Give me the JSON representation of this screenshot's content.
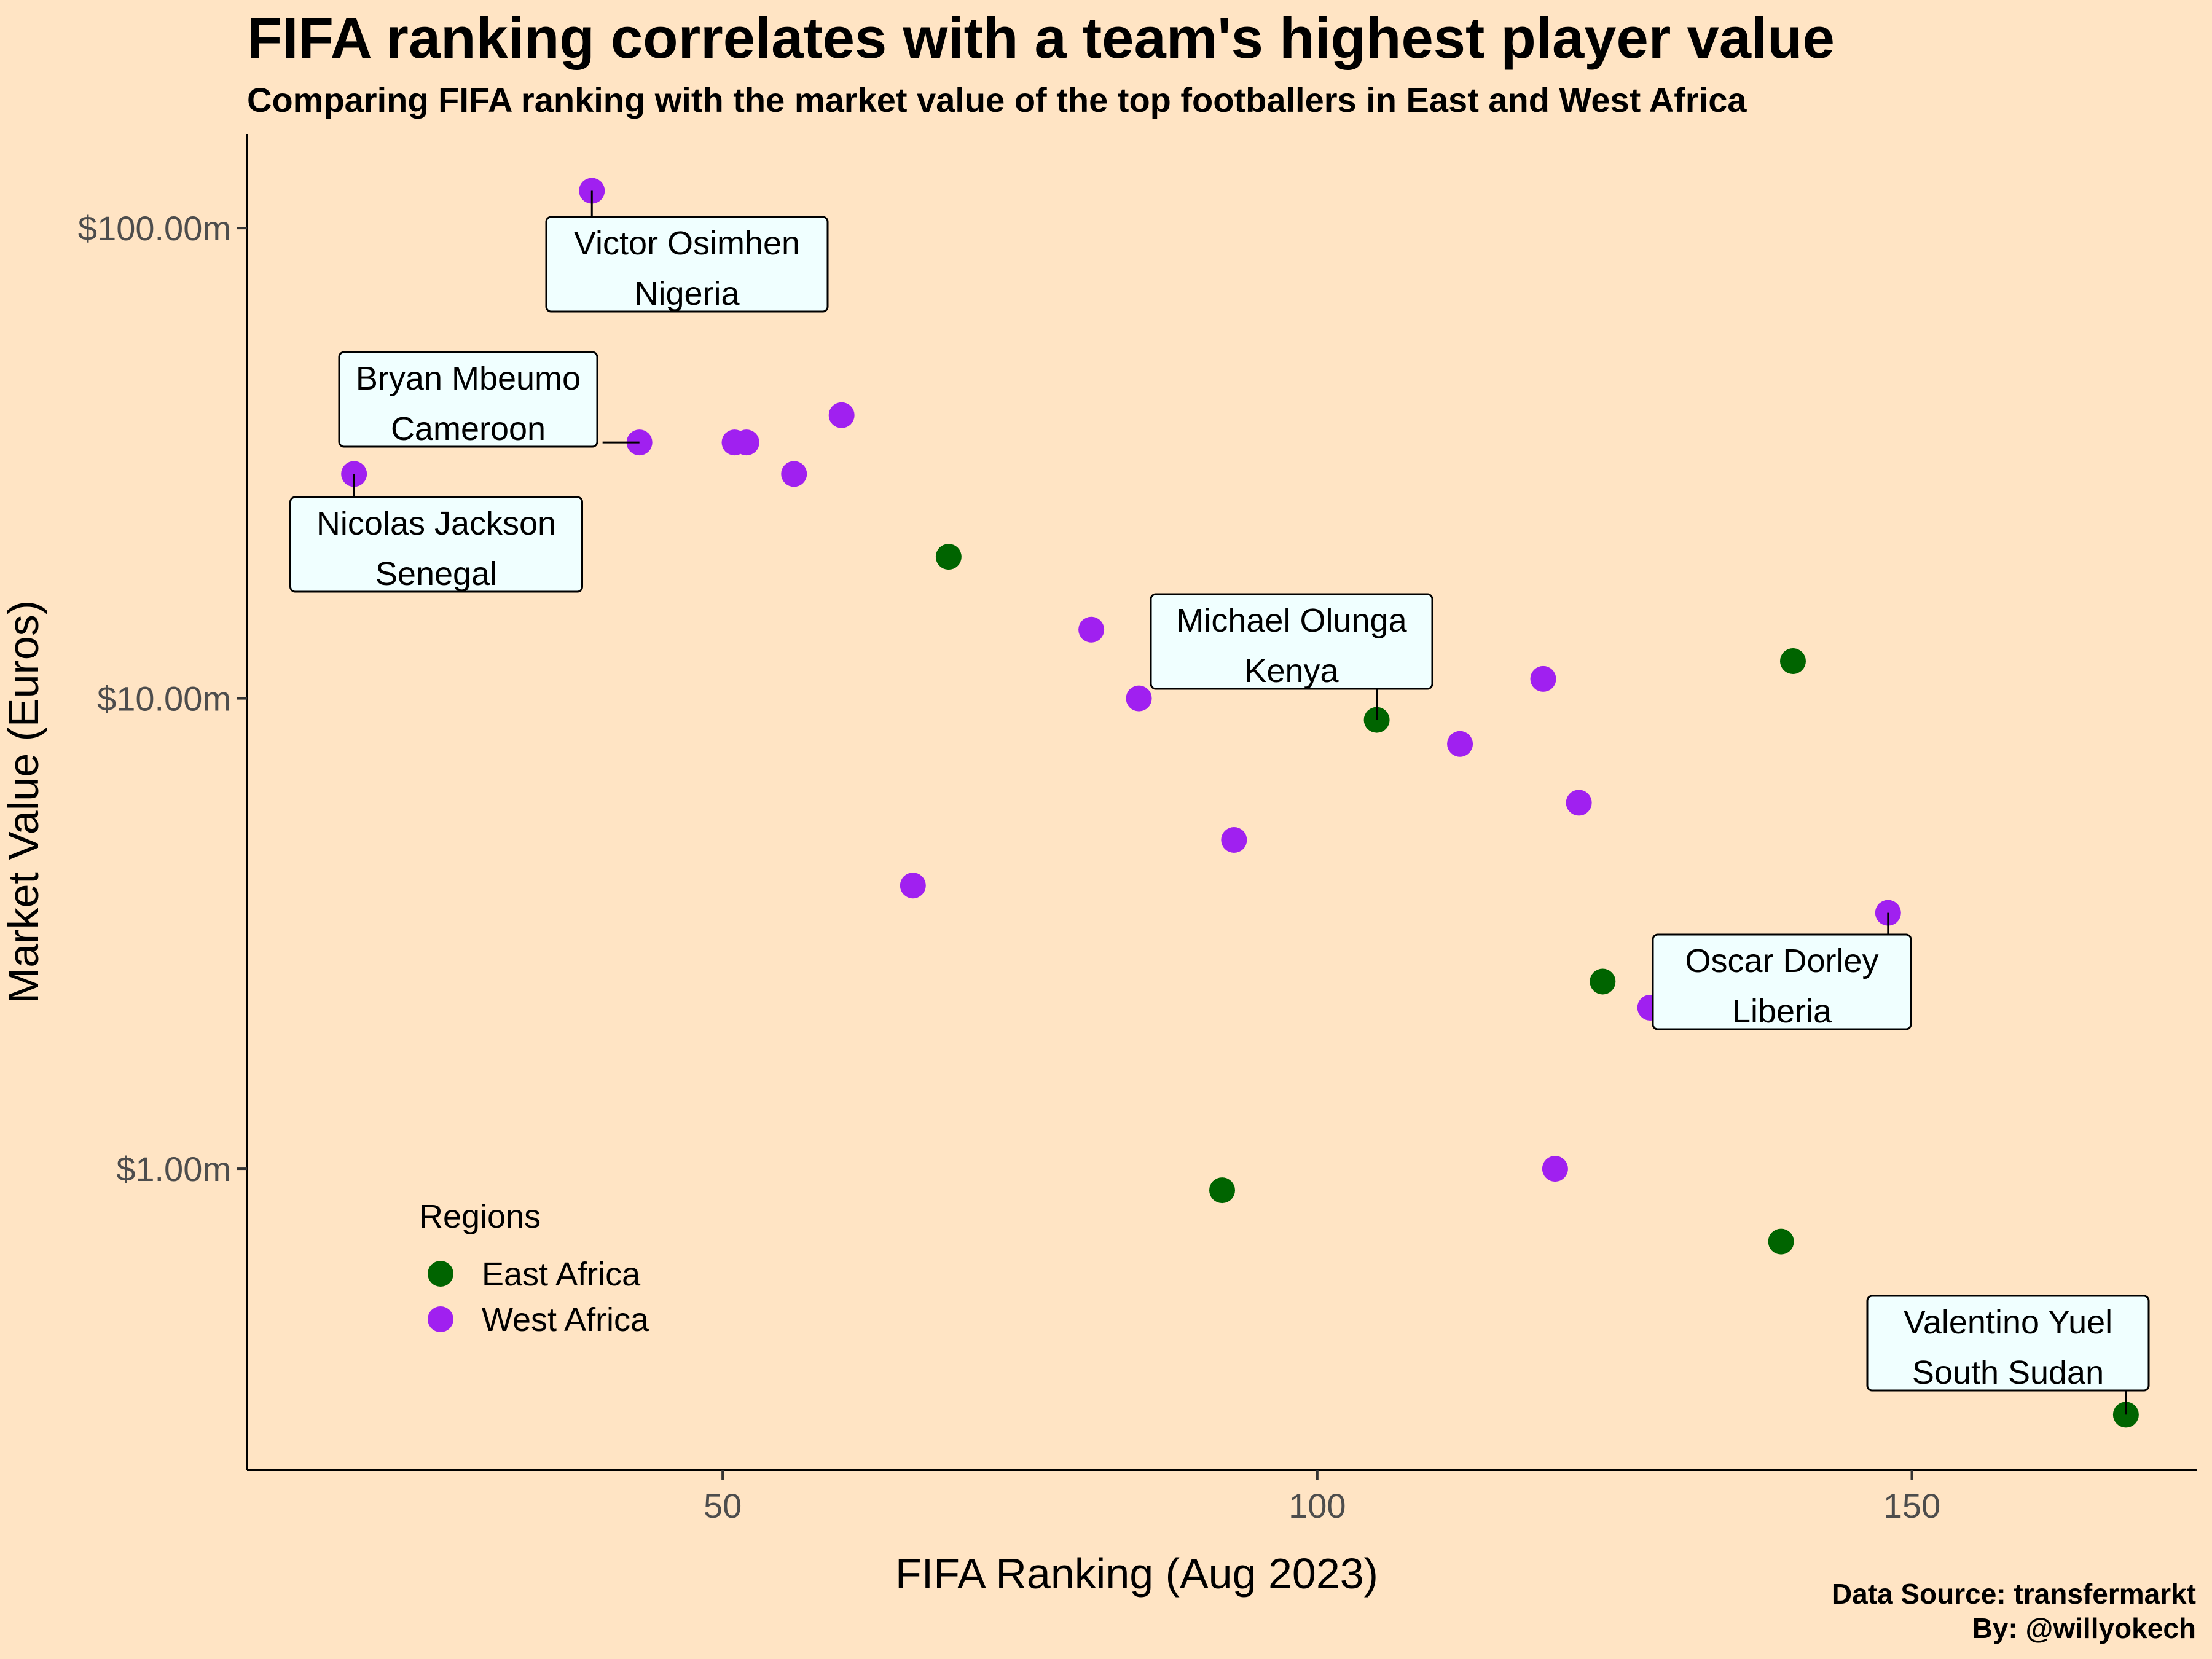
{
  "title": "FIFA ranking correlates with a team's highest player value",
  "subtitle": "Comparing FIFA ranking with the market value of the top footballers in East and West Africa",
  "caption": {
    "line1": "Data Source: transfermarkt",
    "line2": "By: @willyokech"
  },
  "colors": {
    "background": "#FFE4C4",
    "east_africa": "#006400",
    "west_africa": "#A020F0",
    "label_fill": "#F0FFFF"
  },
  "chart_data": {
    "type": "scatter",
    "title": "FIFA ranking correlates with a team's highest player value",
    "subtitle": "Comparing FIFA ranking with the market value of the top footballers in East and West Africa",
    "xlabel": "FIFA Ranking (Aug 2023)",
    "ylabel": "Market Value (Euros)",
    "xlim": [
      10,
      174
    ],
    "ylim_log10": [
      -0.64,
      2.2
    ],
    "y_scale": "log10",
    "x_ticks": [
      50,
      100,
      150
    ],
    "x_tick_labels": [
      "50",
      "100",
      "150"
    ],
    "y_ticks": [
      1,
      10,
      100
    ],
    "y_tick_labels": [
      "$1.00m",
      "$10.00m",
      "$100.00m"
    ],
    "grid": false,
    "legend": {
      "title": "Regions",
      "position": "bottom-left",
      "entries": [
        "East Africa",
        "West Africa"
      ]
    },
    "series": [
      {
        "name": "East Africa",
        "color": "#006400",
        "points": [
          {
            "x": 69,
            "y": 20
          },
          {
            "x": 105,
            "y": 9
          },
          {
            "x": 140,
            "y": 12
          },
          {
            "x": 124,
            "y": 2.5
          },
          {
            "x": 92,
            "y": 0.9
          },
          {
            "x": 139,
            "y": 0.7
          },
          {
            "x": 168,
            "y": 0.3
          }
        ]
      },
      {
        "name": "West Africa",
        "color": "#A020F0",
        "points": [
          {
            "x": 19,
            "y": 30
          },
          {
            "x": 39,
            "y": 120
          },
          {
            "x": 43,
            "y": 35
          },
          {
            "x": 51,
            "y": 35
          },
          {
            "x": 52,
            "y": 35
          },
          {
            "x": 56,
            "y": 30
          },
          {
            "x": 60,
            "y": 40
          },
          {
            "x": 66,
            "y": 4
          },
          {
            "x": 81,
            "y": 14
          },
          {
            "x": 85,
            "y": 10
          },
          {
            "x": 93,
            "y": 5
          },
          {
            "x": 112,
            "y": 8
          },
          {
            "x": 119,
            "y": 11
          },
          {
            "x": 122,
            "y": 6
          },
          {
            "x": 128,
            "y": 2.2
          },
          {
            "x": 120,
            "y": 1
          },
          {
            "x": 148,
            "y": 3.5
          }
        ]
      }
    ],
    "annotations": [
      {
        "player": "Victor Osimhen",
        "country": "Nigeria",
        "x": 39,
        "y": 120
      },
      {
        "player": "Bryan Mbeumo",
        "country": "Cameroon",
        "x": 43,
        "y": 35
      },
      {
        "player": "Nicolas Jackson",
        "country": "Senegal",
        "x": 19,
        "y": 30
      },
      {
        "player": "Michael Olunga",
        "country": "Kenya",
        "x": 105,
        "y": 9
      },
      {
        "player": "Oscar Dorley",
        "country": "Liberia",
        "x": 148,
        "y": 3.5
      },
      {
        "player": "Valentino Yuel",
        "country": "South Sudan",
        "x": 168,
        "y": 0.3
      }
    ]
  }
}
